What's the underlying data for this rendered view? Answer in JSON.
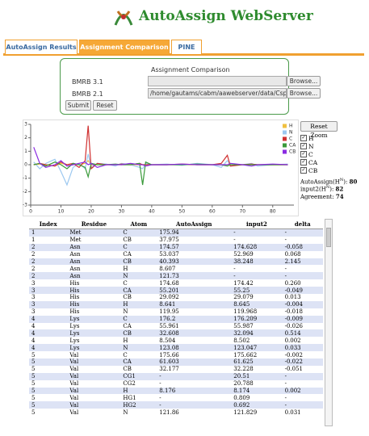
{
  "header": {
    "title": "AutoAssign WebServer"
  },
  "tabs": [
    "AutoAssign Results",
    "Assignment Comparison",
    "PINE"
  ],
  "form": {
    "title": "Assignment Comparison",
    "rows": [
      {
        "label": "BMRB 3.1",
        "value": "",
        "button": "Browse..."
      },
      {
        "label": "BMRB 2.1",
        "value": "/home/gautams/cabm/aawebserver/data/CspA",
        "button": "Browse..."
      }
    ],
    "buttons": [
      "Submit",
      "Reset"
    ]
  },
  "controls": {
    "reset_zoom": "Reset Zoom",
    "stats": [
      {
        "pre": "AutoAssign(H",
        "sup": "N",
        "post": "):",
        "value": "80"
      },
      {
        "pre": "input2(H",
        "sup": "N",
        "post": "):",
        "value": "82"
      },
      {
        "pre": "Agreement:",
        "sup": "",
        "post": "",
        "value": "74"
      }
    ]
  },
  "chart_data": {
    "type": "line",
    "x": [
      1,
      3,
      5,
      8,
      10,
      12,
      14,
      16,
      18,
      19,
      20,
      22,
      25,
      28,
      30,
      33,
      36,
      37,
      38,
      40,
      45,
      50,
      55,
      60,
      63,
      65,
      66,
      70,
      73,
      75,
      80,
      85
    ],
    "series": [
      {
        "name": "H",
        "color": "#f0c040",
        "values": [
          0,
          0.05,
          0,
          -0.1,
          0.1,
          0,
          0.05,
          0,
          0.1,
          0.3,
          0,
          0,
          0,
          0,
          0,
          0,
          0,
          0,
          0,
          0,
          0,
          0,
          0,
          0,
          0,
          0,
          0,
          0,
          0,
          0,
          0,
          0
        ]
      },
      {
        "name": "N",
        "color": "#9cc8f0",
        "values": [
          0.2,
          -0.3,
          0.1,
          0.4,
          -0.5,
          -1.5,
          -0.2,
          0.1,
          -0.3,
          0.8,
          -0.2,
          0.1,
          0.05,
          -0.1,
          0.1,
          0,
          -0.2,
          -0.3,
          0.1,
          0,
          0.05,
          -0.05,
          0.1,
          0,
          -0.2,
          0.3,
          0,
          0,
          0.1,
          -0.1,
          0,
          0.05
        ]
      },
      {
        "name": "C",
        "color": "#d03030",
        "values": [
          0,
          0.1,
          0,
          -0.1,
          0.2,
          0,
          0.1,
          -0.2,
          0.3,
          2.9,
          -0.3,
          0.1,
          0,
          0,
          0.05,
          0,
          0.1,
          0,
          0,
          0,
          0,
          0.05,
          0,
          0,
          0.1,
          0.7,
          -0.1,
          0,
          0.05,
          0,
          0,
          0
        ]
      },
      {
        "name": "CA",
        "color": "#3a9a3a",
        "values": [
          0,
          0.1,
          -0.1,
          0.2,
          0,
          -0.3,
          0.1,
          0,
          -0.2,
          -0.9,
          0.1,
          0,
          0,
          0.05,
          0,
          0,
          0.1,
          -1.5,
          0.2,
          0,
          0,
          0,
          0.05,
          0,
          0,
          -0.1,
          0,
          0,
          0,
          0,
          0,
          0
        ]
      },
      {
        "name": "CB",
        "color": "#8a2be2",
        "values": [
          1.3,
          0.1,
          -0.2,
          0,
          0.3,
          -0.1,
          0,
          0.1,
          0.2,
          0,
          0.1,
          -0.2,
          0,
          0,
          0,
          0.1,
          0,
          0,
          -0.1,
          0,
          0,
          0.05,
          0,
          0,
          0,
          0,
          0.1,
          0,
          -0.1,
          0,
          0.05,
          0
        ]
      }
    ],
    "xlim": [
      0,
      87
    ],
    "xticks": [
      0,
      10,
      20,
      30,
      40,
      50,
      60,
      70,
      80
    ],
    "ylim": [
      -3,
      3
    ],
    "yticks": [
      -3,
      -2,
      -1,
      0,
      1,
      2,
      3
    ]
  },
  "table": {
    "columns": [
      "Index",
      "Residue",
      "Atom",
      "AutoAssign",
      "input2",
      "delta"
    ],
    "rows": [
      [
        "1",
        "Met",
        "C",
        "175.94",
        "-",
        "-"
      ],
      [
        "1",
        "Met",
        "CB",
        "37.975",
        "-",
        "-"
      ],
      [
        "2",
        "Asn",
        "C",
        "174.57",
        "174.628",
        "-0.058"
      ],
      [
        "2",
        "Asn",
        "CA",
        "53.037",
        "52.969",
        "0.068"
      ],
      [
        "2",
        "Asn",
        "CB",
        "40.393",
        "38.248",
        "2.145"
      ],
      [
        "2",
        "Asn",
        "H",
        "8.607",
        "-",
        "-"
      ],
      [
        "2",
        "Asn",
        "N",
        "121.73",
        "-",
        "-"
      ],
      [
        "3",
        "His",
        "C",
        "174.68",
        "174.42",
        "0.260"
      ],
      [
        "3",
        "His",
        "CA",
        "55.201",
        "55.25",
        "-0.049"
      ],
      [
        "3",
        "His",
        "CB",
        "29.092",
        "29.079",
        "0.013"
      ],
      [
        "3",
        "His",
        "H",
        "8.641",
        "8.645",
        "-0.004"
      ],
      [
        "3",
        "His",
        "N",
        "119.95",
        "119.968",
        "-0.018"
      ],
      [
        "4",
        "Lys",
        "C",
        "176.2",
        "176.209",
        "-0.009"
      ],
      [
        "4",
        "Lys",
        "CA",
        "55.961",
        "55.987",
        "-0.026"
      ],
      [
        "4",
        "Lys",
        "CB",
        "32.608",
        "32.094",
        "0.514"
      ],
      [
        "4",
        "Lys",
        "H",
        "8.504",
        "8.502",
        "0.002"
      ],
      [
        "4",
        "Lys",
        "N",
        "123.08",
        "123.047",
        "0.033"
      ],
      [
        "5",
        "Val",
        "C",
        "175.66",
        "175.662",
        "-0.002"
      ],
      [
        "5",
        "Val",
        "CA",
        "61.603",
        "61.625",
        "-0.022"
      ],
      [
        "5",
        "Val",
        "CB",
        "32.177",
        "32.228",
        "-0.051"
      ],
      [
        "5",
        "Val",
        "CG1",
        "-",
        "20.51",
        "-"
      ],
      [
        "5",
        "Val",
        "CG2",
        "-",
        "20.788",
        "-"
      ],
      [
        "5",
        "Val",
        "H",
        "8.176",
        "8.174",
        "0.002"
      ],
      [
        "5",
        "Val",
        "HG1",
        "-",
        "0.809",
        "-"
      ],
      [
        "5",
        "Val",
        "HG2",
        "-",
        "0.692",
        "-"
      ],
      [
        "5",
        "Val",
        "N",
        "121.86",
        "121.829",
        "0.031"
      ]
    ]
  }
}
